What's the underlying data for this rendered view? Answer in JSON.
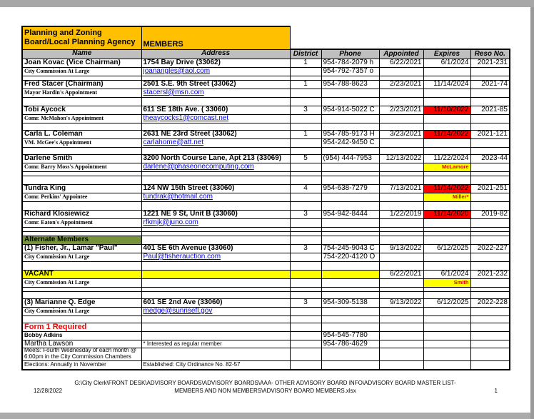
{
  "colors": {
    "gold_header": "#FFC000",
    "column_header_gray": "#BFBFBF",
    "expired_red": "#FF0000",
    "note_yellow": "#FFFF00",
    "alternate_olive": "#76933C",
    "link_blue": "#0000EE"
  },
  "table": {
    "title": {
      "line1": "Planning and Zoning",
      "line2": "Board/Local Planning Agency",
      "members_label": "MEMBERS"
    },
    "columns": [
      "Name",
      "Address",
      "District",
      "Phone",
      "Appointed",
      "Expires",
      "Reso No."
    ],
    "rows": [
      {
        "h": 12,
        "cells": [
          [
            "Joan Kovac (Vice Chairman)",
            "b"
          ],
          [
            "1754 Bay Drive (33062)",
            "b"
          ],
          [
            "1",
            ""
          ],
          [
            "954-784-2079 h",
            ""
          ],
          [
            "6/22/2021",
            ""
          ],
          [
            "6/1/2024",
            ""
          ],
          [
            "2021-231",
            ""
          ]
        ]
      },
      {
        "h": 12,
        "cells": [
          [
            "City Commission At Large",
            "ns"
          ],
          [
            "joanangles@aol.com",
            "lnk"
          ],
          "",
          [
            "954-792-7357 o",
            ""
          ],
          "",
          "",
          ""
        ]
      },
      {
        "h": 6,
        "cells": []
      },
      {
        "h": 12,
        "cells": [
          [
            "Fred Stacer (Chairman)",
            "b"
          ],
          [
            "2501 S.E. 9th Street (33062)",
            "b"
          ],
          [
            "1",
            ""
          ],
          [
            "954-788-8623",
            ""
          ],
          [
            "2/23/2021",
            ""
          ],
          [
            "11/14/2024",
            ""
          ],
          [
            "2021-74",
            ""
          ]
        ]
      },
      {
        "h": 12,
        "cells": [
          [
            "Mayor Hardin's Appointment",
            "ns"
          ],
          [
            "stacersl@msn.com",
            "lnk"
          ],
          "",
          "",
          "",
          "",
          ""
        ]
      },
      {
        "h": 12,
        "cells": []
      },
      {
        "h": 12,
        "cells": [
          [
            "Tobi Aycock",
            "b"
          ],
          [
            "611 SE 18th Ave. ( 33060)",
            "b"
          ],
          [
            "3",
            ""
          ],
          [
            "954-914-5022 C",
            ""
          ],
          [
            "2/23/2021",
            ""
          ],
          [
            "11/10/2022",
            "redbg"
          ],
          [
            "2021-85",
            ""
          ]
        ]
      },
      {
        "h": 12,
        "cells": [
          [
            "Comr. McMahon's Appointment",
            "ns"
          ],
          [
            "theaycocks1@comcast.net",
            "lnk"
          ],
          "",
          "",
          "",
          "",
          ""
        ]
      },
      {
        "h": 10,
        "cells": []
      },
      {
        "h": 12,
        "cells": [
          [
            "Carla L. Coleman",
            "b"
          ],
          [
            "2631 NE 23rd Street (33062)",
            "b"
          ],
          [
            "1",
            ""
          ],
          [
            "954-785-9173 H",
            ""
          ],
          [
            "3/23/2021",
            ""
          ],
          [
            "11/14/2022",
            "redbg"
          ],
          [
            "2021-121",
            ""
          ]
        ]
      },
      {
        "h": 12,
        "cells": [
          [
            "VM. McGee's Appointment",
            "ns"
          ],
          [
            "carlahome@att.net",
            "lnk"
          ],
          "",
          [
            "954-242-9450 C",
            ""
          ],
          "",
          "",
          ""
        ]
      },
      {
        "h": 10,
        "cells": []
      },
      {
        "h": 12,
        "cells": [
          [
            "Darlene Smith",
            "b"
          ],
          [
            "3200 North Course Lane, Apt 213 (33069)",
            "b"
          ],
          [
            "5",
            ""
          ],
          [
            "(954) 444-7953",
            ""
          ],
          [
            "12/13/2022",
            ""
          ],
          [
            "11/22/2024",
            ""
          ],
          [
            "2023-44",
            ""
          ]
        ]
      },
      {
        "h": 12,
        "cells": [
          [
            "Comr. Barry Moss's Appointment",
            "ns"
          ],
          [
            "darlene@phaseonecomputing.com",
            "lnk"
          ],
          "",
          "",
          "",
          [
            "McLamore",
            "ynote"
          ],
          ""
        ]
      },
      {
        "h": 6,
        "cells": []
      },
      {
        "h": 12,
        "cells": []
      },
      {
        "h": 12,
        "cells": [
          [
            "Tundra King",
            "b"
          ],
          [
            "124 NW 15th Street (33060)",
            "b"
          ],
          [
            "4",
            ""
          ],
          [
            "954-638-7279",
            ""
          ],
          [
            "7/13/2021",
            ""
          ],
          [
            "11/14/2022",
            "redbg"
          ],
          [
            "2021-251",
            ""
          ]
        ]
      },
      {
        "h": 12,
        "cells": [
          [
            "Comr. Perkins' Appointee",
            "ns"
          ],
          [
            "tundrak@hotmail.com",
            "lnk"
          ],
          "",
          "",
          "",
          [
            "Miller*",
            "ynote"
          ],
          ""
        ]
      },
      {
        "h": 12,
        "cells": []
      },
      {
        "h": 12,
        "cells": [
          [
            "Richard Klosiewicz",
            "b"
          ],
          [
            "1221 NE 9 St, Unit B (33060)",
            "b"
          ],
          [
            "3",
            ""
          ],
          [
            "954-942-8444",
            ""
          ],
          [
            "1/22/2019",
            ""
          ],
          [
            "11/14/2020",
            "redbg"
          ],
          [
            "2019-82",
            ""
          ]
        ]
      },
      {
        "h": 12,
        "cells": [
          [
            "Comr. Eaton's Appointment",
            "ns"
          ],
          [
            "rfkmjk@juno.com",
            "lnk"
          ],
          "",
          "",
          "",
          "",
          ""
        ]
      },
      {
        "h": 6,
        "cells": []
      },
      {
        "h": 6,
        "cells": []
      },
      {
        "h": 12,
        "cells": [
          [
            "Alternate Members",
            "olv"
          ],
          "",
          "",
          "",
          "",
          "",
          ""
        ]
      },
      {
        "h": 12,
        "cells": [
          [
            "(1) Fisher, Jr., Lamar \"Paul\"",
            "b"
          ],
          [
            "401 SE 6th Avenue (33060)",
            "b"
          ],
          [
            "3",
            ""
          ],
          [
            "754-245-9043 C",
            ""
          ],
          [
            "9/13/2022",
            ""
          ],
          [
            "6/12/2025",
            ""
          ],
          [
            "2022-227",
            ""
          ]
        ]
      },
      {
        "h": 12,
        "cells": [
          [
            "City Commission At Large",
            "ns"
          ],
          [
            "Paul@fisherauction.com",
            "lnk"
          ],
          "",
          [
            "754-220-4120 O",
            ""
          ],
          "",
          "",
          ""
        ]
      },
      {
        "h": 12,
        "cells": []
      },
      {
        "h": 12,
        "cells": [
          [
            "VACANT",
            "b yelbg"
          ],
          [
            "",
            "yelbg"
          ],
          [
            "",
            "yelbg"
          ],
          [
            "",
            "yelbg"
          ],
          [
            "6/22/2021",
            ""
          ],
          [
            "6/1/2024",
            ""
          ],
          [
            "2021-232",
            ""
          ]
        ]
      },
      {
        "h": 12,
        "cells": [
          [
            "City Commission At Large",
            "ns"
          ],
          "",
          "",
          "",
          "",
          [
            "Smith",
            "ynote"
          ],
          ""
        ]
      },
      {
        "h": 6,
        "cells": []
      },
      {
        "h": 10,
        "cells": []
      },
      {
        "h": 12,
        "cells": [
          [
            "(3) Marianne Q. Edge",
            "b"
          ],
          [
            "601 SE 2nd Ave (33060)",
            "b"
          ],
          [
            "3",
            ""
          ],
          [
            "954-309-5138",
            ""
          ],
          [
            "9/13/2022",
            ""
          ],
          [
            "6/12/2025",
            ""
          ],
          [
            "2022-228",
            ""
          ]
        ]
      },
      {
        "h": 12,
        "cells": [
          [
            "City Commission At Large",
            "ns"
          ],
          [
            "medge@sunrisefl.gov",
            "lnk"
          ],
          "",
          "",
          "",
          "",
          ""
        ]
      },
      {
        "h": 10,
        "cells": []
      },
      {
        "h": 12,
        "cells": [
          [
            "Form 1 Required",
            "redtx"
          ],
          "",
          "",
          "",
          "",
          "",
          ""
        ]
      },
      {
        "h": 10,
        "cells": [
          [
            "Bobby Adkins",
            "smb"
          ],
          "",
          "",
          [
            "954-545-7780",
            ""
          ],
          "",
          "",
          ""
        ]
      },
      {
        "h": 10,
        "cells": [
          [
            "Martha Lawson",
            ""
          ],
          [
            "* Interested as regular member",
            "sm"
          ],
          "",
          [
            "954-786-4629",
            ""
          ],
          "",
          "",
          ""
        ]
      },
      {
        "h": 18,
        "cells": [
          [
            "Meets:  Fourth Wednesday of each month @\n6:00pm in the City Commission Chambers",
            "sm clip"
          ],
          "",
          "",
          "",
          "",
          "",
          ""
        ]
      },
      {
        "h": 12,
        "cells": [
          [
            "Elections:  Annually in November",
            "sm"
          ],
          [
            "Established:  City Ordinance No. 82-57",
            "sm"
          ],
          "",
          "",
          "",
          "",
          ""
        ]
      }
    ]
  },
  "footer": {
    "path_line": "G:\\City Clerk\\FRONT DESK\\ADVISORY BOARDS\\ADVISORY BOARDS\\AAA- OTHER ADVISORY BOARD INFO\\ADVISORY BOARD MASTER LIST-",
    "date": "12/28/2022",
    "file_line": "MEMBERS AND NON MEMBERS\\ADVISORY BOARD MEMBERS.xlsx",
    "page_number": "1"
  }
}
